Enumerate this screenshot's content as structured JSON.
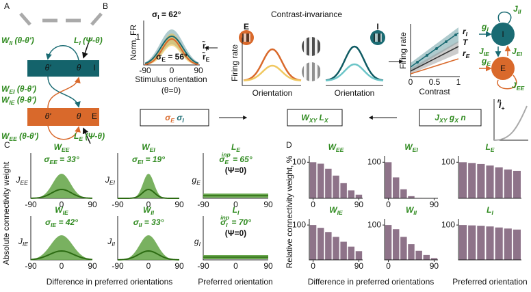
{
  "panel_a": {
    "label": "A",
    "bar_i": {
      "left": "θ'",
      "right": "θ",
      "name": "I"
    },
    "bar_e": {
      "left": "θ'",
      "right": "θ",
      "name": "E"
    },
    "w_ii": [
      {
        "text": "W",
        "sub": "II"
      },
      {
        "text": " (θ-θ')"
      }
    ],
    "l_i": [
      {
        "text": "L",
        "sub": "I"
      },
      {
        "text": " (Ψ-θ)"
      }
    ],
    "w_ei": [
      {
        "text": "W",
        "sub": "EI"
      },
      {
        "text": " (θ-θ')"
      }
    ],
    "w_ie": [
      {
        "text": "W",
        "sub": "IE"
      },
      {
        "text": " (θ-θ')"
      }
    ],
    "w_ee": [
      {
        "text": "W",
        "sub": "EE"
      },
      {
        "text": " (θ-θ')"
      }
    ],
    "l_e": [
      {
        "text": "L",
        "sub": "E"
      },
      {
        "text": " (Ψ-θ)"
      }
    ]
  },
  "panel_b": {
    "label": "B",
    "title": "Contrast-invariance",
    "tuning": {
      "ylabel": "Norm. FR",
      "ytick": "1",
      "xticks": [
        "-90",
        "0",
        "90"
      ],
      "xlabel": "Stimulus orientation",
      "note": "(θ=0)",
      "sigma_i": [
        {
          "text": "σ",
          "sub": "I"
        },
        {
          "text": " = 62°"
        }
      ],
      "sigma_e": [
        {
          "text": "σ",
          "sub": "E"
        },
        {
          "text": " = 56°"
        }
      ],
      "legend_i": [
        {
          "text": "r̃",
          "sub": "I"
        }
      ],
      "legend_e": [
        {
          "text": "r̃",
          "sub": "E"
        }
      ]
    },
    "schematic": {
      "e": "E",
      "i": "I",
      "ylabel": "Firing rate",
      "xlabel": "Orientation"
    },
    "contrast": {
      "ylabel": "Firing rate",
      "xlabel": "Contrast",
      "xticks": [
        "0",
        "0.5",
        "1"
      ],
      "legend_i": [
        {
          "text": "r",
          "sub": "I"
        }
      ],
      "legend_t": [
        {
          "text": "T"
        }
      ],
      "legend_e": [
        {
          "text": "r",
          "sub": "E"
        }
      ]
    },
    "network": {
      "i": "I",
      "e": "E",
      "j_ii": [
        {
          "text": "J",
          "sub": "II"
        }
      ],
      "g_i": [
        {
          "text": "g",
          "sub": "I"
        }
      ],
      "j_ie": [
        {
          "text": "J",
          "sub": "IE"
        }
      ],
      "j_ei": [
        {
          "text": "J",
          "sub": "EI"
        }
      ],
      "g_e": [
        {
          "text": "g",
          "sub": "E"
        }
      ],
      "j_ee": [
        {
          "text": "J",
          "sub": "EE"
        }
      ]
    },
    "box_sigma": [
      {
        "text": "σ",
        "sub": "E"
      },
      {
        "text": "   σ",
        "sub": "I"
      }
    ],
    "box_weights": [
      {
        "text": "W",
        "sub": "XY"
      },
      {
        "text": "  L",
        "sub": "X"
      }
    ],
    "box_params": [
      {
        "text": "J",
        "sub": "XY"
      },
      {
        "text": "  g",
        "sub": "X"
      },
      {
        "text": "  n"
      }
    ],
    "icon": [
      {
        "text": "I",
        "sub": "+",
        "sup": "n"
      }
    ]
  },
  "panel_c": {
    "label": "C",
    "ylabel": "Absolute connectivity weight",
    "xlabel_left": "Difference in preferred orientations",
    "xlabel_right": "Preferred orientation",
    "xticks": [
      "-90",
      "0",
      "90"
    ],
    "plots": [
      {
        "title": [
          {
            "text": "W",
            "sub": "EE"
          }
        ],
        "sigma": [
          {
            "text": "σ",
            "sub": "EE"
          },
          {
            "text": " = 33°"
          }
        ],
        "amp": [
          {
            "text": "J",
            "sub": "EE"
          }
        ]
      },
      {
        "title": [
          {
            "text": "W",
            "sub": "EI"
          }
        ],
        "sigma": [
          {
            "text": "σ",
            "sub": "EI"
          },
          {
            "text": " = 19°"
          }
        ],
        "amp": [
          {
            "text": "J",
            "sub": "EI"
          }
        ]
      },
      {
        "title": [
          {
            "text": "L",
            "sub": "E"
          }
        ],
        "sigma": [
          {
            "text": "σ",
            "sub": "E",
            "sup": "inp"
          },
          {
            "text": " = 65°"
          }
        ],
        "note": "(Ψ=0)",
        "amp": [
          {
            "text": "g",
            "sub": "E"
          }
        ]
      },
      {
        "title": [
          {
            "text": "W",
            "sub": "IE"
          }
        ],
        "sigma": [
          {
            "text": "σ",
            "sub": "IE"
          },
          {
            "text": " = 42°"
          }
        ],
        "amp": [
          {
            "text": "J",
            "sub": "IE"
          }
        ]
      },
      {
        "title": [
          {
            "text": "W",
            "sub": "II"
          }
        ],
        "sigma": [
          {
            "text": "σ",
            "sub": "II"
          },
          {
            "text": " = 33°"
          }
        ],
        "amp": [
          {
            "text": "J",
            "sub": "II"
          }
        ]
      },
      {
        "title": [
          {
            "text": "L",
            "sub": "I"
          }
        ],
        "sigma": [
          {
            "text": "σ",
            "sub": "I",
            "sup": "inp"
          },
          {
            "text": " = 70°"
          }
        ],
        "note": "(Ψ=0)",
        "amp": [
          {
            "text": "g",
            "sub": "I"
          }
        ]
      }
    ]
  },
  "panel_d": {
    "label": "D",
    "ylabel": "Relative connectivity weight, %",
    "xlabel_left": "Difference in preferred orientations",
    "xlabel_right": "Preferred orientation"
  },
  "chart_data": [
    {
      "type": "bar",
      "title": [
        {
          "text": "W",
          "sub": "EE"
        }
      ],
      "x": [
        0,
        15,
        30,
        45,
        60,
        75,
        90
      ],
      "values": [
        100,
        96,
        82,
        63,
        42,
        22,
        10
      ],
      "color": "#8e7389",
      "xlim": [
        -7.5,
        97.5
      ],
      "ylim": [
        0,
        110
      ],
      "yticks": [
        100
      ],
      "xticks": [
        0,
        90
      ]
    },
    {
      "type": "bar",
      "title": [
        {
          "text": "W",
          "sub": "EI"
        }
      ],
      "x": [
        0,
        15,
        30,
        45,
        60,
        75,
        90
      ],
      "values": [
        100,
        58,
        25,
        6,
        1,
        0,
        0
      ],
      "color": "#8e7389",
      "xlim": [
        -7.5,
        97.5
      ],
      "ylim": [
        0,
        110
      ],
      "yticks": [
        100
      ],
      "xticks": [
        0,
        90
      ]
    },
    {
      "type": "bar",
      "title": [
        {
          "text": "L",
          "sub": "E"
        }
      ],
      "x": [
        0,
        15,
        30,
        45,
        60,
        75,
        90
      ],
      "values": [
        100,
        98,
        95,
        91,
        86,
        80,
        76
      ],
      "color": "#8e7389",
      "xlim": [
        -7.5,
        97.5
      ],
      "ylim": [
        0,
        110
      ],
      "yticks": [
        100
      ]
    },
    {
      "type": "bar",
      "title": [
        {
          "text": "W",
          "sub": "IE"
        }
      ],
      "x": [
        0,
        15,
        30,
        45,
        60,
        75,
        90
      ],
      "values": [
        100,
        92,
        80,
        66,
        52,
        38,
        25
      ],
      "color": "#8e7389",
      "xlim": [
        -7.5,
        97.5
      ],
      "ylim": [
        0,
        110
      ],
      "yticks": [
        100
      ],
      "xticks": [
        0,
        90
      ]
    },
    {
      "type": "bar",
      "title": [
        {
          "text": "W",
          "sub": "II"
        }
      ],
      "x": [
        0,
        15,
        30,
        45,
        60,
        75,
        90
      ],
      "values": [
        100,
        88,
        66,
        45,
        26,
        14,
        5
      ],
      "color": "#8e7389",
      "xlim": [
        -7.5,
        97.5
      ],
      "ylim": [
        0,
        110
      ],
      "yticks": [
        100
      ],
      "xticks": [
        0,
        90
      ]
    },
    {
      "type": "bar",
      "title": [
        {
          "text": "L",
          "sub": "I"
        }
      ],
      "x": [
        0,
        15,
        30,
        45,
        60,
        75,
        90
      ],
      "values": [
        100,
        99,
        98,
        96,
        93,
        90,
        87
      ],
      "color": "#8e7389",
      "xlim": [
        -7.5,
        97.5
      ],
      "ylim": [
        0,
        110
      ],
      "yticks": [
        100
      ]
    }
  ]
}
